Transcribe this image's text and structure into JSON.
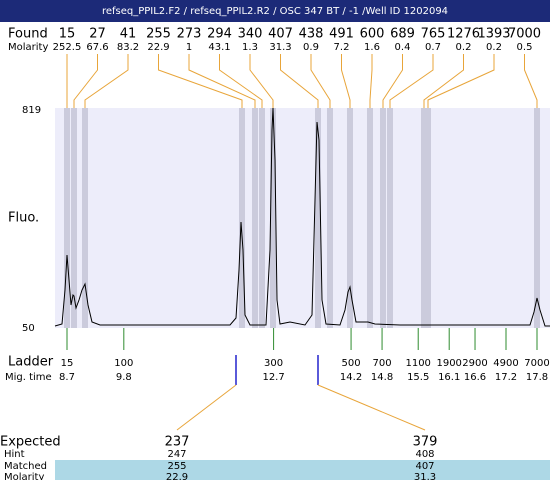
{
  "title": "refseq_PPIL2.F2 / refseq_PPIL2.R2 / OSC 347 BT / -1 /Well ID 1202094",
  "found": {
    "label": "Found",
    "molarity_label": "Molarity",
    "sizes": [
      15,
      27,
      41,
      255,
      273,
      294,
      340,
      407,
      438,
      491,
      600,
      689,
      765,
      1276,
      1393,
      7000
    ],
    "molarity": [
      252.5,
      67.6,
      83.2,
      22.9,
      1,
      43.1,
      1.3,
      31.3,
      0.9,
      7.2,
      1.6,
      0.4,
      0.7,
      0.2,
      0.2,
      0.5
    ]
  },
  "y_axis": {
    "label": "Fluo.",
    "ticks": [
      819,
      50
    ]
  },
  "ladder": {
    "label": "Ladder",
    "time_label": "Mig. time",
    "sizes": [
      15,
      100,
      300,
      500,
      700,
      1100,
      1900,
      2900,
      4900,
      7000
    ],
    "times": [
      8.7,
      9.8,
      12.7,
      14.2,
      14.8,
      15.5,
      16.1,
      16.6,
      17.2,
      17.8
    ]
  },
  "expected": {
    "row_labels": [
      "Expected",
      "Hint",
      "Matched",
      "Molarity"
    ],
    "columns": [
      [
        237,
        247,
        255,
        22.9
      ],
      [
        379,
        408,
        407,
        31.3
      ]
    ]
  }
}
